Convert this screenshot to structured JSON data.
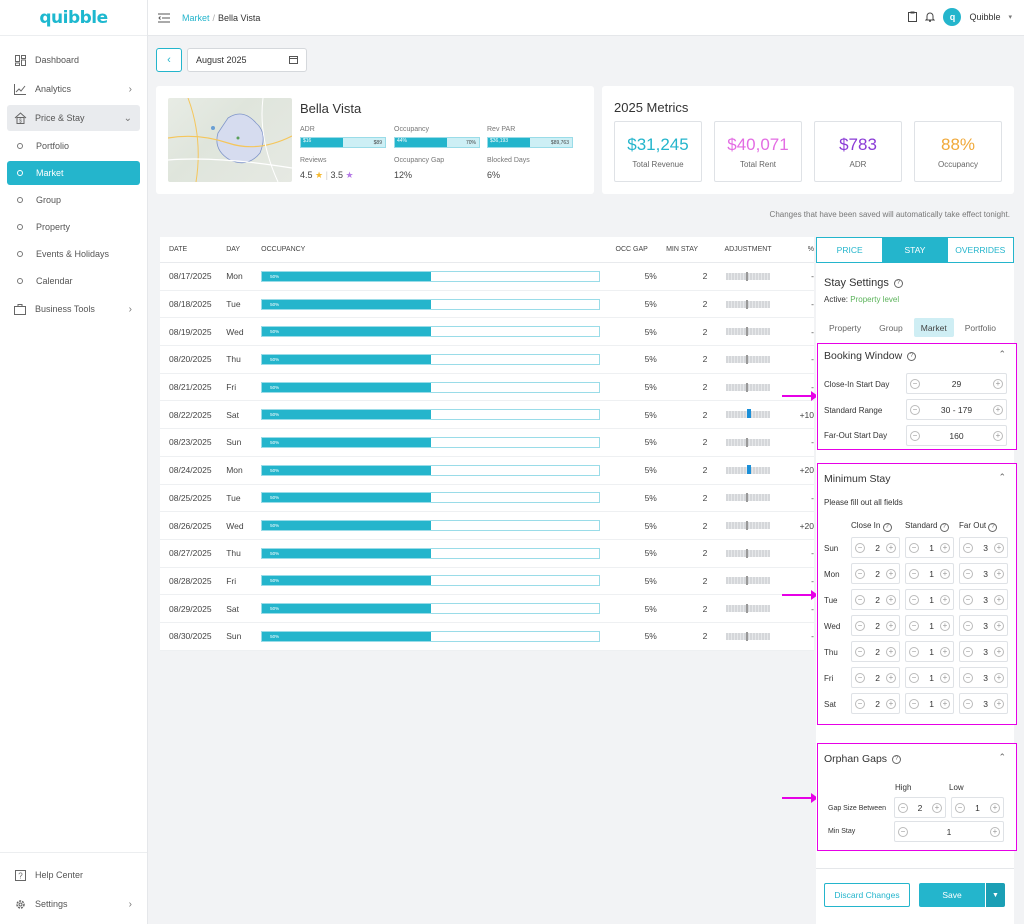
{
  "app": {
    "logo": "quibble"
  },
  "sidebar": {
    "items": [
      {
        "label": "Dashboard",
        "icon": "dashboard-icon"
      },
      {
        "label": "Analytics",
        "icon": "chart-icon"
      },
      {
        "label": "Price & Stay",
        "icon": "house-icon"
      }
    ],
    "sub_items": [
      "Portfolio",
      "Market",
      "Group",
      "Property",
      "Events & Holidays",
      "Calendar"
    ],
    "active_sub": "Market",
    "business_tools": "Business Tools",
    "help_center": "Help Center",
    "settings": "Settings"
  },
  "header": {
    "breadcrumb_link": "Market",
    "breadcrumb_current": "Bella Vista",
    "user_name": "Quibble"
  },
  "date_picker": {
    "value": "August 2025"
  },
  "property": {
    "name": "Bella Vista",
    "adr_label": "ADR",
    "adr_low": "$16",
    "adr_high": "$89",
    "occupancy_label": "Occupancy",
    "occupancy_low": "44%",
    "occupancy_high": "70%",
    "revpar_label": "Rev PAR",
    "revpar_low": "$36,193",
    "revpar_high": "$89,763",
    "reviews_label": "Reviews",
    "review_score_1": "4.5",
    "review_score_2": "3.5",
    "occ_gap_label": "Occupancy Gap",
    "occ_gap_value": "12%",
    "blocked_label": "Blocked Days",
    "blocked_value": "6%"
  },
  "metrics": {
    "title": "2025 Metrics",
    "cards": [
      {
        "value": "$31,245",
        "label": "Total Revenue",
        "color": "#24b5cc"
      },
      {
        "value": "$40,071",
        "label": "Total Rent",
        "color": "#e36ce3"
      },
      {
        "value": "$783",
        "label": "ADR",
        "color": "#8a3bd6"
      },
      {
        "value": "88%",
        "label": "Occupancy",
        "color": "#f0a93a"
      }
    ]
  },
  "note": "Changes that have been saved will automatically take effect tonight.",
  "table": {
    "headers": [
      "DATE",
      "DAY",
      "OCCUPANCY",
      "OCC GAP",
      "MIN STAY",
      "ADJUSTMENT",
      "%"
    ],
    "rows": [
      {
        "date": "08/17/2025",
        "day": "Mon",
        "occ": "50%",
        "gap": "5%",
        "min": "2",
        "pct": "-",
        "hi": false
      },
      {
        "date": "08/18/2025",
        "day": "Tue",
        "occ": "50%",
        "gap": "5%",
        "min": "2",
        "pct": "-",
        "hi": false
      },
      {
        "date": "08/19/2025",
        "day": "Wed",
        "occ": "50%",
        "gap": "5%",
        "min": "2",
        "pct": "-",
        "hi": false
      },
      {
        "date": "08/20/2025",
        "day": "Thu",
        "occ": "50%",
        "gap": "5%",
        "min": "2",
        "pct": "-",
        "hi": false
      },
      {
        "date": "08/21/2025",
        "day": "Fri",
        "occ": "50%",
        "gap": "5%",
        "min": "2",
        "pct": "-",
        "hi": false
      },
      {
        "date": "08/22/2025",
        "day": "Sat",
        "occ": "50%",
        "gap": "5%",
        "min": "2",
        "pct": "+10",
        "hi": true
      },
      {
        "date": "08/23/2025",
        "day": "Sun",
        "occ": "50%",
        "gap": "5%",
        "min": "2",
        "pct": "-",
        "hi": false
      },
      {
        "date": "08/24/2025",
        "day": "Mon",
        "occ": "50%",
        "gap": "5%",
        "min": "2",
        "pct": "+20",
        "hi": true
      },
      {
        "date": "08/25/2025",
        "day": "Tue",
        "occ": "50%",
        "gap": "5%",
        "min": "2",
        "pct": "-",
        "hi": false
      },
      {
        "date": "08/26/2025",
        "day": "Wed",
        "occ": "50%",
        "gap": "5%",
        "min": "2",
        "pct": "+20",
        "hi": false
      },
      {
        "date": "08/27/2025",
        "day": "Thu",
        "occ": "50%",
        "gap": "5%",
        "min": "2",
        "pct": "-",
        "hi": false
      },
      {
        "date": "08/28/2025",
        "day": "Fri",
        "occ": "50%",
        "gap": "5%",
        "min": "2",
        "pct": "-",
        "hi": false
      },
      {
        "date": "08/29/2025",
        "day": "Sat",
        "occ": "50%",
        "gap": "5%",
        "min": "2",
        "pct": "-",
        "hi": false
      },
      {
        "date": "08/30/2025",
        "day": "Sun",
        "occ": "50%",
        "gap": "5%",
        "min": "2",
        "pct": "-",
        "hi": false
      }
    ]
  },
  "panel": {
    "tabs": [
      "PRICE",
      "STAY",
      "OVERRIDES"
    ],
    "active_tab": "STAY",
    "stay_settings_title": "Stay Settings",
    "active_prefix": "Active:",
    "active_value": "Property level",
    "subtabs": [
      "Property",
      "Group",
      "Market",
      "Portfolio"
    ],
    "active_subtab": "Market",
    "booking_window": {
      "title": "Booking Window",
      "close_in_label": "Close-In Start Day",
      "close_in_value": "29",
      "standard_label": "Standard Range",
      "standard_value": "30 - 179",
      "far_out_label": "Far-Out Start Day",
      "far_out_value": "160"
    },
    "minimum_stay": {
      "title": "Minimum Stay",
      "hint": "Please fill out all fields",
      "col_close_in": "Close In",
      "col_standard": "Standard",
      "col_far_out": "Far Out",
      "days": [
        {
          "day": "Sun",
          "close_in": "2",
          "standard": "1",
          "far_out": "3"
        },
        {
          "day": "Mon",
          "close_in": "2",
          "standard": "1",
          "far_out": "3"
        },
        {
          "day": "Tue",
          "close_in": "2",
          "standard": "1",
          "far_out": "3"
        },
        {
          "day": "Wed",
          "close_in": "2",
          "standard": "1",
          "far_out": "3"
        },
        {
          "day": "Thu",
          "close_in": "2",
          "standard": "1",
          "far_out": "3"
        },
        {
          "day": "Fri",
          "close_in": "2",
          "standard": "1",
          "far_out": "3"
        },
        {
          "day": "Sat",
          "close_in": "2",
          "standard": "1",
          "far_out": "3"
        }
      ]
    },
    "orphan_gaps": {
      "title": "Orphan Gaps",
      "col_high": "High",
      "col_low": "Low",
      "gap_label": "Gap Size Between",
      "gap_high": "2",
      "gap_low": "1",
      "min_stay_label": "Min Stay",
      "min_stay_value": "1"
    },
    "discard_label": "Discard Changes",
    "save_label": "Save"
  }
}
